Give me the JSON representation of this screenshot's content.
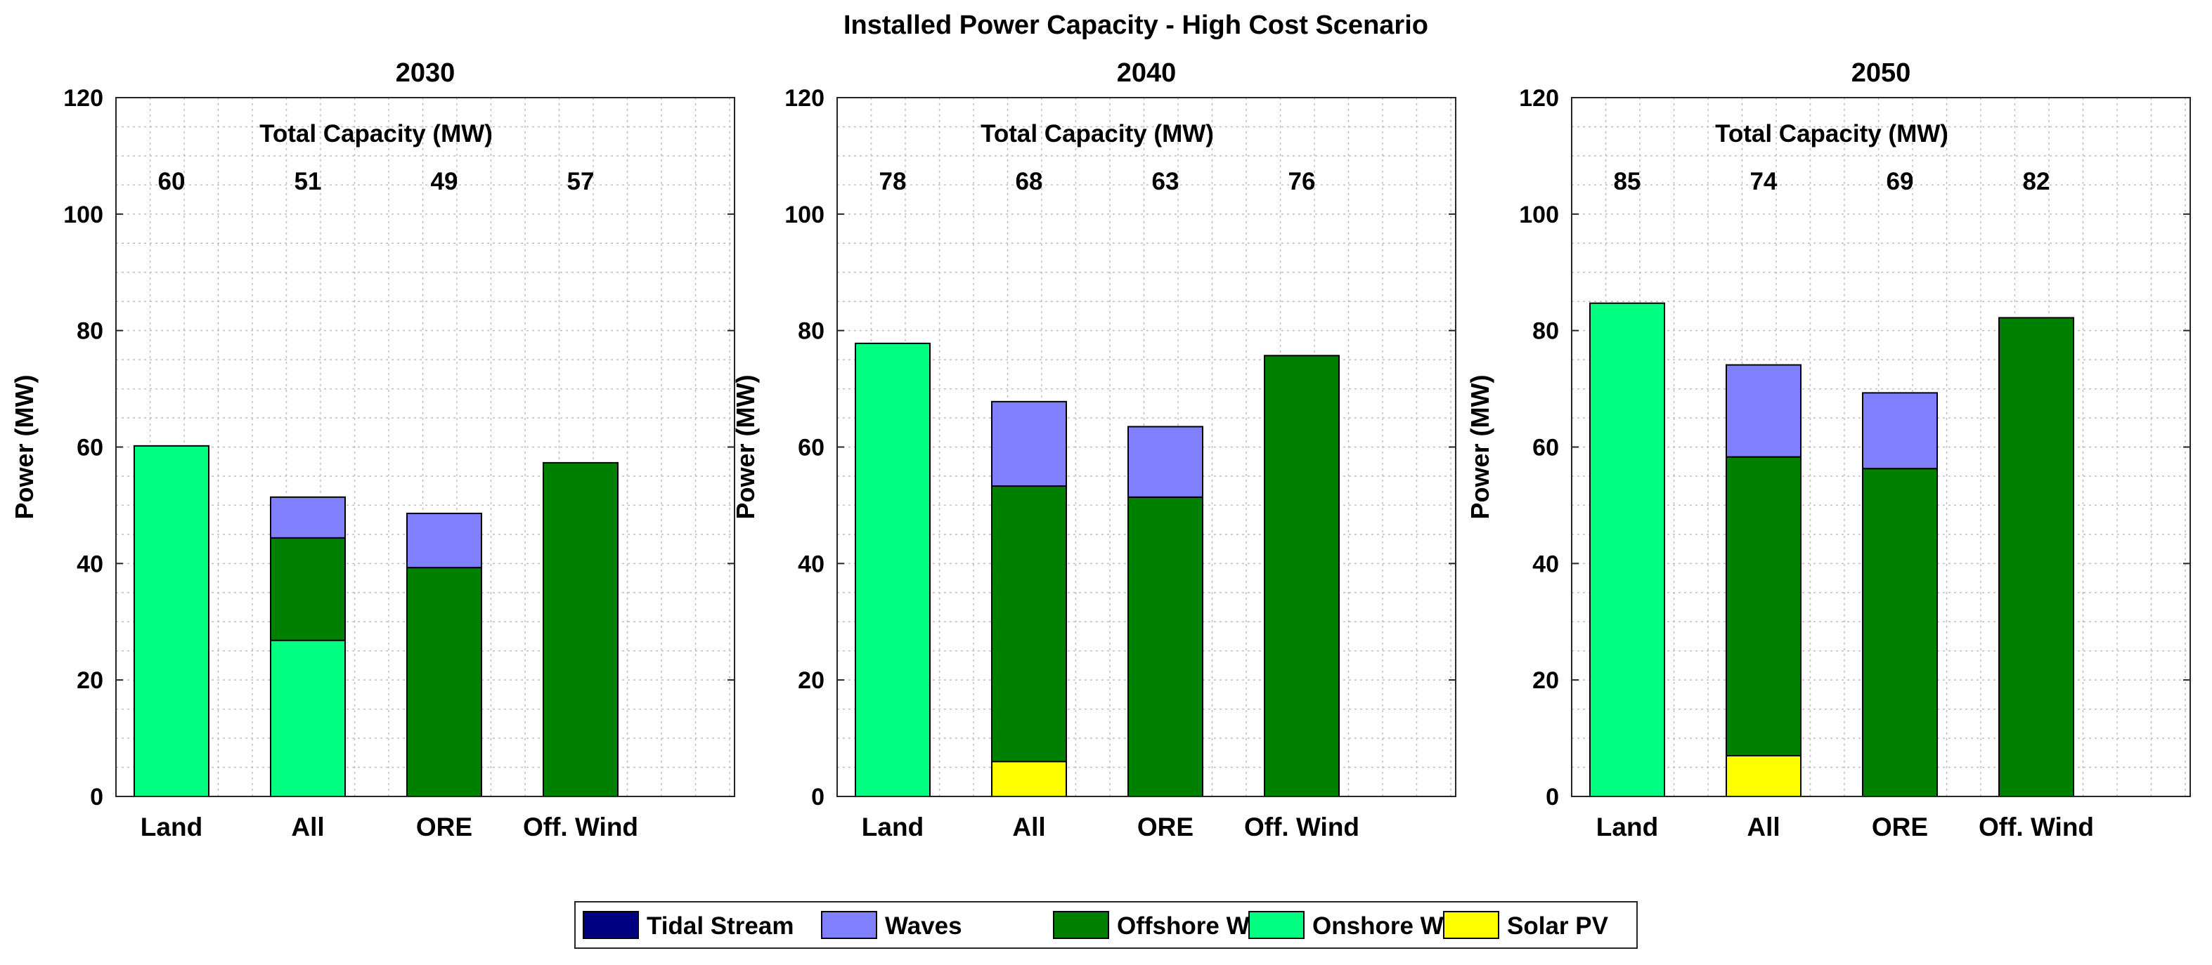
{
  "chart_data": {
    "type": "bar",
    "stacked": true,
    "title": "Installed Power Capacity - High Cost Scenario",
    "ylabel": "Power (MW)",
    "ylim": [
      0,
      120
    ],
    "yticks": [
      0,
      20,
      40,
      60,
      80,
      100,
      120
    ],
    "grid": true,
    "categories": [
      "Land",
      "All",
      "ORE",
      "Off. Wind"
    ],
    "annotation_label": "Total Capacity (MW)",
    "legend": {
      "placement": "bottom-center",
      "entries": [
        {
          "name": "Tidal Stream",
          "color": "#000080"
        },
        {
          "name": "Waves",
          "color": "#8080ff"
        },
        {
          "name": "Offshore Wind",
          "color": "#008000"
        },
        {
          "name": "Onshore Wind",
          "color": "#00ff80"
        },
        {
          "name": "Solar PV",
          "color": "#ffff00"
        }
      ]
    },
    "stack_order": [
      "Solar PV",
      "Onshore Wind",
      "Offshore Wind",
      "Waves",
      "Tidal Stream"
    ],
    "panels": [
      {
        "title": "2030",
        "totals": [
          "60",
          "51",
          "49",
          "57"
        ],
        "series": [
          {
            "name": "Solar PV",
            "values": [
              0,
              0,
              0,
              0
            ]
          },
          {
            "name": "Onshore Wind",
            "values": [
              60.2,
              26.8,
              0,
              0
            ]
          },
          {
            "name": "Offshore Wind",
            "values": [
              0,
              17.6,
              39.3,
              57.3
            ]
          },
          {
            "name": "Waves",
            "values": [
              0,
              7.0,
              9.3,
              0
            ]
          },
          {
            "name": "Tidal Stream",
            "values": [
              0,
              0,
              0,
              0
            ]
          }
        ]
      },
      {
        "title": "2040",
        "totals": [
          "78",
          "68",
          "63",
          "76"
        ],
        "series": [
          {
            "name": "Solar PV",
            "values": [
              0,
              6.0,
              0,
              0
            ]
          },
          {
            "name": "Onshore Wind",
            "values": [
              77.8,
              0,
              0,
              0
            ]
          },
          {
            "name": "Offshore Wind",
            "values": [
              0,
              47.3,
              51.4,
              75.7
            ]
          },
          {
            "name": "Waves",
            "values": [
              0,
              14.5,
              12.1,
              0
            ]
          },
          {
            "name": "Tidal Stream",
            "values": [
              0,
              0,
              0,
              0
            ]
          }
        ]
      },
      {
        "title": "2050",
        "totals": [
          "85",
          "74",
          "69",
          "82"
        ],
        "series": [
          {
            "name": "Solar PV",
            "values": [
              0,
              7.0,
              0,
              0
            ]
          },
          {
            "name": "Onshore Wind",
            "values": [
              84.7,
              0,
              0,
              0
            ]
          },
          {
            "name": "Offshore Wind",
            "values": [
              0,
              51.3,
              56.3,
              82.2
            ]
          },
          {
            "name": "Waves",
            "values": [
              0,
              15.8,
              13.0,
              0
            ]
          },
          {
            "name": "Tidal Stream",
            "values": [
              0,
              0,
              0,
              0
            ]
          }
        ]
      }
    ]
  }
}
